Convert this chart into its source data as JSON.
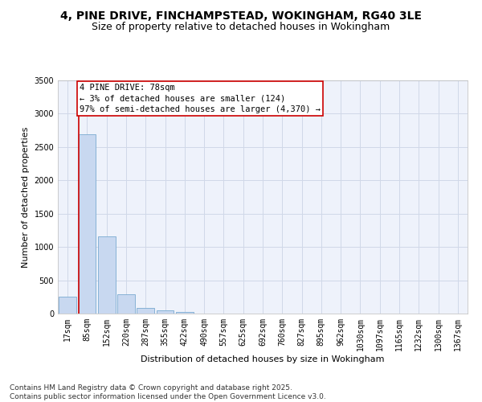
{
  "title1": "4, PINE DRIVE, FINCHAMPSTEAD, WOKINGHAM, RG40 3LE",
  "title2": "Size of property relative to detached houses in Wokingham",
  "xlabel": "Distribution of detached houses by size in Wokingham",
  "ylabel": "Number of detached properties",
  "bin_labels": [
    "17sqm",
    "85sqm",
    "152sqm",
    "220sqm",
    "287sqm",
    "355sqm",
    "422sqm",
    "490sqm",
    "557sqm",
    "625sqm",
    "692sqm",
    "760sqm",
    "827sqm",
    "895sqm",
    "962sqm",
    "1030sqm",
    "1097sqm",
    "1165sqm",
    "1232sqm",
    "1300sqm",
    "1367sqm"
  ],
  "bar_heights": [
    255,
    2690,
    1160,
    290,
    90,
    45,
    30,
    0,
    0,
    0,
    0,
    0,
    0,
    0,
    0,
    0,
    0,
    0,
    0,
    0,
    0
  ],
  "bar_color": "#c8d8f0",
  "bar_edge_color": "#7aaad0",
  "grid_color": "#d0d8e8",
  "background_color": "#eef2fb",
  "property_line_color": "#cc0000",
  "annotation_text": "4 PINE DRIVE: 78sqm\n← 3% of detached houses are smaller (124)\n97% of semi-detached houses are larger (4,370) →",
  "annotation_box_color": "#cc0000",
  "ylim": [
    0,
    3500
  ],
  "yticks": [
    0,
    500,
    1000,
    1500,
    2000,
    2500,
    3000,
    3500
  ],
  "footnote": "Contains HM Land Registry data © Crown copyright and database right 2025.\nContains public sector information licensed under the Open Government Licence v3.0.",
  "title1_fontsize": 10,
  "title2_fontsize": 9,
  "xlabel_fontsize": 8,
  "ylabel_fontsize": 8,
  "tick_fontsize": 7,
  "annotation_fontsize": 7.5,
  "footnote_fontsize": 6.5
}
